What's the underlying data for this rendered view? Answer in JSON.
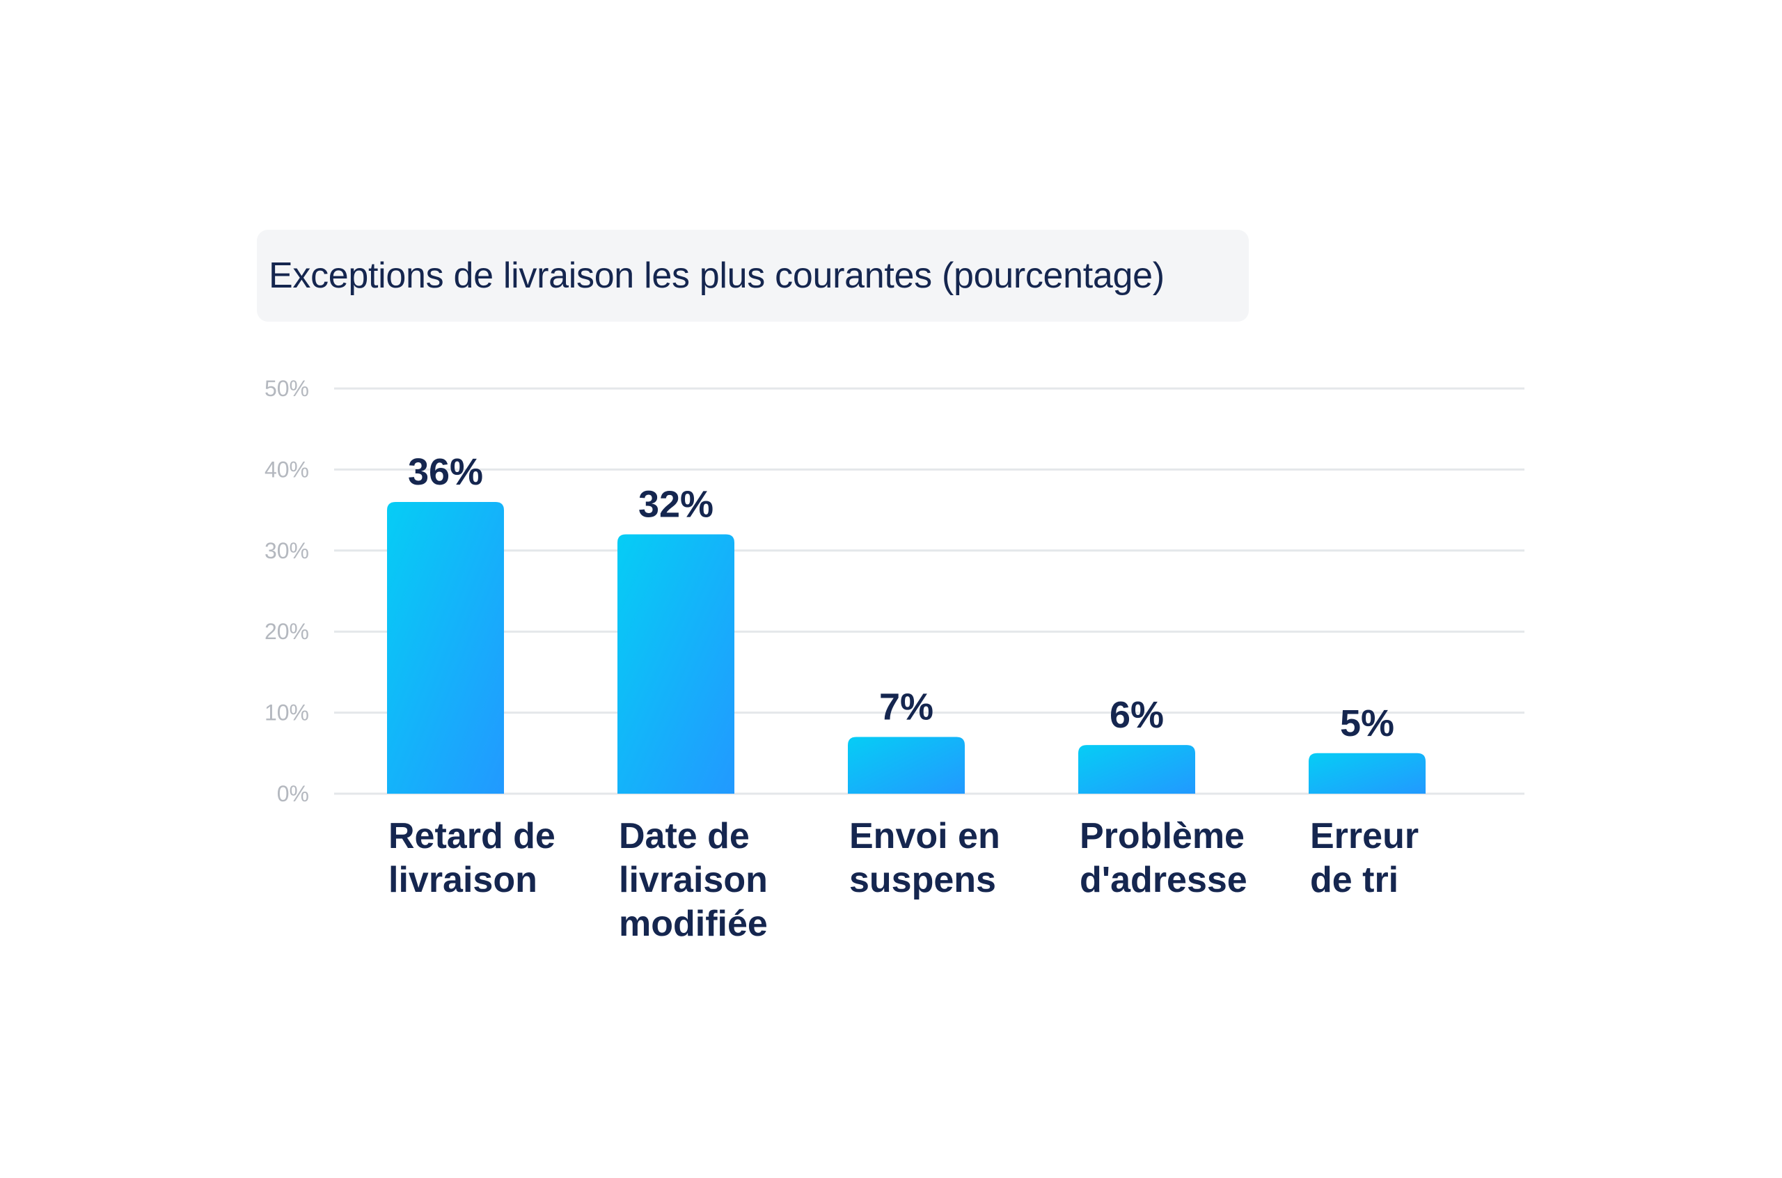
{
  "chart_data": {
    "type": "bar",
    "title": "Exceptions de livraison les plus courantes (pourcentage)",
    "categories": [
      "Retard de livraison",
      "Date de livraison modifiée",
      "Envoi en suspens",
      "Problème d'adresse",
      "Erreur de tri"
    ],
    "category_lines": [
      [
        "Retard de",
        "livraison"
      ],
      [
        "Date de",
        "livraison",
        "modifiée"
      ],
      [
        "Envoi en",
        "suspens"
      ],
      [
        "Problème",
        "d'adresse"
      ],
      [
        "Erreur",
        "de tri"
      ]
    ],
    "values": [
      36,
      32,
      7,
      6,
      5
    ],
    "value_labels": [
      "36%",
      "32%",
      "7%",
      "6%",
      "5%"
    ],
    "ylim": [
      0,
      50
    ],
    "yticks": [
      0,
      10,
      20,
      30,
      40,
      50
    ],
    "ytick_labels": [
      "0%",
      "10%",
      "20%",
      "30%",
      "40%",
      "50%"
    ],
    "grid": true,
    "legend": "none",
    "colors": {
      "bar_gradient_start": "#06cdf5",
      "bar_gradient_end": "#2299ff",
      "text_dark": "#15264f",
      "grid": "#e4e7ea",
      "tick_text": "#b4b8bf",
      "title_bg": "#f4f5f7"
    }
  }
}
